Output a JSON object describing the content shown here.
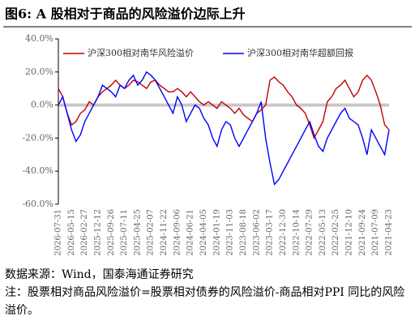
{
  "chart_data": {
    "type": "line",
    "title": "图6:  A 股相对于商品的风险溢价边际上升",
    "categories": [
      "2026-07-31",
      null,
      null,
      "2026-05-15",
      null,
      null,
      "2026-02-27",
      null,
      null,
      "2025-12-12",
      null,
      null,
      "2025-09-26",
      null,
      null,
      "2025-07-11",
      null,
      null,
      "2025-04-25",
      null,
      null,
      "2025-02-07",
      null,
      null,
      "2024-11-22",
      null,
      null,
      "2024-09-06",
      null,
      null,
      "2024-06-21",
      null,
      null,
      "2024-04-05",
      null,
      null,
      "2024-01-19",
      null,
      null,
      "2023-11-03",
      null,
      null,
      "2023-08-18",
      null,
      null,
      "2023-06-02",
      null,
      null,
      "2023-03-17",
      null,
      null,
      "2022-12-30",
      null,
      null,
      "2022-10-14",
      null,
      null,
      "2022-07-29",
      null,
      null,
      "2022-05-13",
      null,
      null,
      "2022-02-25",
      null,
      null,
      "2021-12-10",
      null,
      null,
      "2021-09-24",
      null,
      null,
      "2021-07-09",
      null,
      null,
      "2021-04-23"
    ],
    "series": [
      {
        "name": "沪深300相对南华风险溢价",
        "color": "#c00000",
        "values": [
          10,
          5,
          -5,
          -12,
          -10,
          -5,
          -3,
          2,
          0,
          5,
          8,
          10,
          12,
          15,
          12,
          10,
          12,
          15,
          14,
          12,
          10,
          14,
          15,
          12,
          10,
          8,
          8,
          10,
          8,
          5,
          8,
          5,
          2,
          0,
          2,
          0,
          -2,
          2,
          0,
          -2,
          -5,
          -2,
          -6,
          -8,
          -10,
          -5,
          -3,
          0,
          15,
          17,
          14,
          12,
          8,
          5,
          0,
          -2,
          -5,
          -12,
          -20,
          -15,
          -10,
          2,
          5,
          10,
          12,
          15,
          10,
          5,
          8,
          15,
          18,
          15,
          8,
          0,
          -12,
          -15
        ]
      },
      {
        "name": "沪深300相对南华超额回报",
        "color": "#0000ff",
        "values": [
          0,
          5,
          -5,
          -15,
          -22,
          -18,
          -10,
          -5,
          0,
          5,
          12,
          10,
          8,
          5,
          12,
          10,
          15,
          18,
          12,
          15,
          20,
          18,
          15,
          10,
          5,
          0,
          -5,
          5,
          0,
          -10,
          -5,
          0,
          -2,
          -8,
          -12,
          -20,
          -25,
          -15,
          -10,
          -12,
          -20,
          -25,
          -20,
          -15,
          -10,
          -5,
          2,
          -20,
          -35,
          -48,
          -45,
          -40,
          -35,
          -30,
          -25,
          -20,
          -15,
          -10,
          -18,
          -25,
          -28,
          -20,
          -15,
          -10,
          -5,
          -2,
          -8,
          -10,
          -12,
          -20,
          -30,
          -15,
          -20,
          -25,
          -30,
          -15
        ]
      }
    ],
    "ylim": [
      -60,
      40
    ],
    "yticks": [
      {
        "value": -60,
        "label": "-60.0%"
      },
      {
        "value": -40,
        "label": "-40.0%"
      },
      {
        "value": -20,
        "label": "-20.0%"
      },
      {
        "value": 0,
        "label": "0.0%"
      },
      {
        "value": 20,
        "label": "20.0%"
      },
      {
        "value": 40,
        "label": "40.0%"
      }
    ],
    "zero_line": true,
    "legend": "top"
  },
  "source": "数据来源：Wind，国泰海通证券研究",
  "note": "注：股票相对商品风险溢价=股票相对债券的风险溢价-商品相对PPI 同比的风险溢价。"
}
